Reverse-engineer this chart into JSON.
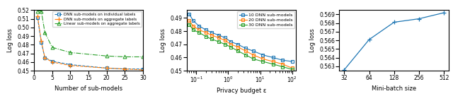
{
  "plot1": {
    "x": [
      1,
      2,
      3,
      5,
      10,
      20,
      25,
      30
    ],
    "dnn_individual": [
      0.511,
      0.483,
      0.465,
      0.461,
      0.457,
      0.453,
      0.452,
      0.452
    ],
    "dnn_aggregate": [
      0.513,
      0.484,
      0.465,
      0.46,
      0.456,
      0.453,
      0.452,
      0.451
    ],
    "linear_aggregate": [
      0.519,
      0.519,
      0.494,
      0.477,
      0.471,
      0.467,
      0.466,
      0.466
    ],
    "xlim": [
      0,
      30
    ],
    "ylim": [
      0.45,
      0.52
    ],
    "yticks": [
      0.45,
      0.46,
      0.47,
      0.48,
      0.49,
      0.5,
      0.51,
      0.52
    ],
    "xticks": [
      0,
      5,
      10,
      15,
      20,
      25,
      30
    ],
    "xlabel": "Number of sub-models",
    "ylabel": "Log loss",
    "legend": [
      "DNN sub-models on individual labels",
      "DNN sub-models on aggregate labels",
      "Linear sub-models on aggregate labels"
    ]
  },
  "plot2": {
    "x": [
      0.06,
      0.08,
      0.12,
      0.2,
      0.3,
      0.5,
      0.8,
      1.2,
      2.0,
      3.5,
      6.0,
      12.0,
      25.0,
      50.0,
      100.0
    ],
    "sub10": [
      0.493,
      0.488,
      0.484,
      0.481,
      0.479,
      0.477,
      0.475,
      0.472,
      0.47,
      0.467,
      0.465,
      0.462,
      0.46,
      0.458,
      0.457
    ],
    "sub20": [
      0.488,
      0.484,
      0.481,
      0.479,
      0.477,
      0.475,
      0.473,
      0.47,
      0.468,
      0.465,
      0.462,
      0.459,
      0.457,
      0.455,
      0.452
    ],
    "sub30": [
      0.485,
      0.481,
      0.479,
      0.476,
      0.474,
      0.472,
      0.47,
      0.468,
      0.465,
      0.462,
      0.459,
      0.457,
      0.455,
      0.453,
      0.451
    ],
    "xlim": [
      0.05,
      130
    ],
    "ylim": [
      0.45,
      0.496
    ],
    "yticks": [
      0.45,
      0.46,
      0.47,
      0.48,
      0.49
    ],
    "xlabel": "Privacy budget ε",
    "ylabel": "Log loss",
    "legend": [
      "10 DNN sub-models",
      "20 DNN sub-models",
      "30 DNN sub-models"
    ]
  },
  "plot3": {
    "x": [
      32,
      64,
      128,
      256,
      512
    ],
    "y": [
      0.5626,
      0.5661,
      0.5681,
      0.5685,
      0.5692
    ],
    "xlim": [
      28,
      580
    ],
    "ylim": [
      0.5625,
      0.5695
    ],
    "xlabel": "Mini-batch size",
    "ylabel": "Log loss",
    "yticks": [
      0.563,
      0.564,
      0.565,
      0.566,
      0.567,
      0.568,
      0.569
    ]
  },
  "colors": {
    "blue": "#1f77b4",
    "orange": "#ff7f0e",
    "green": "#2ca02c"
  }
}
